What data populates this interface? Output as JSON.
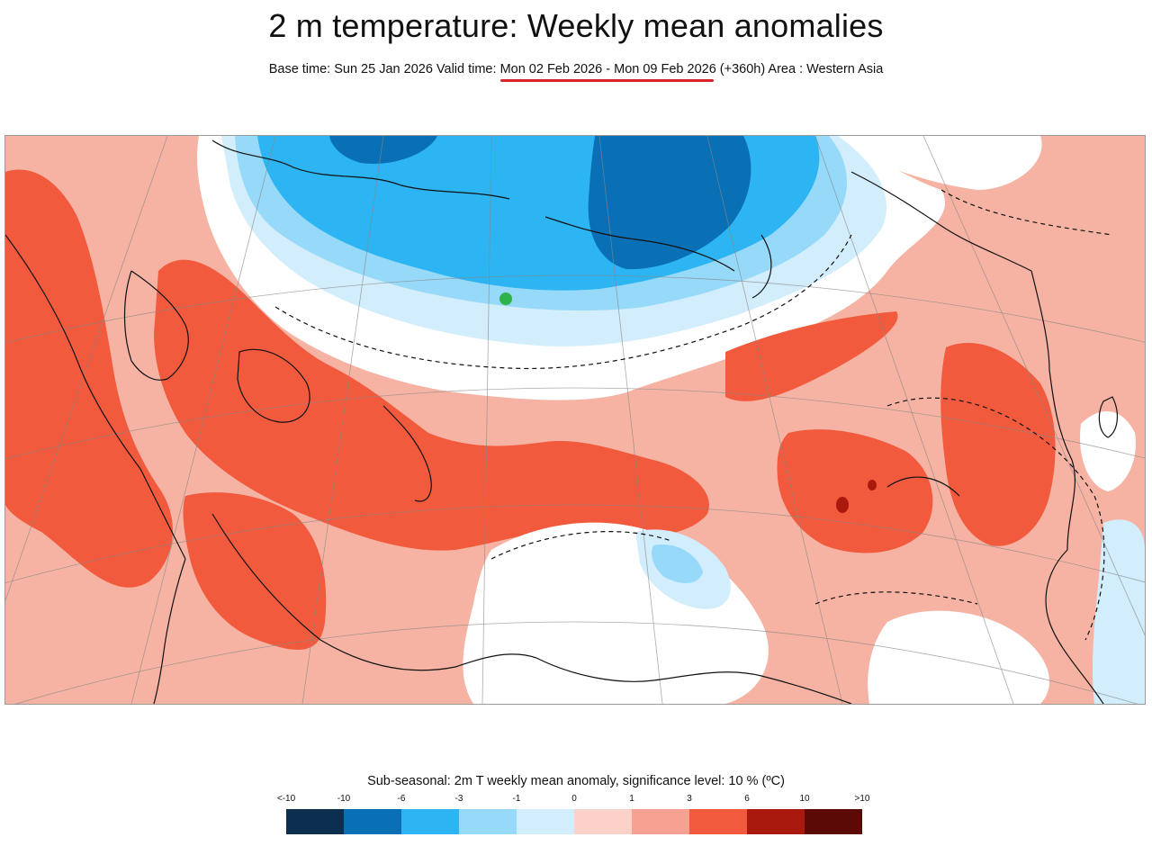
{
  "title": "2 m temperature: Weekly mean anomalies",
  "subtitle": {
    "base": "Base time: Sun 25 Jan 2026 Valid time: ",
    "valid_range": "Mon 02 Feb 2026 - Mon 09 Feb 2026",
    "rest": " (+360h) Area : Western Asia"
  },
  "legend": {
    "title": "Sub-seasonal: 2m T weekly mean anomaly, significance level: 10 % (ºC)",
    "ticks": [
      "<-10",
      "-10",
      "-6",
      "-3",
      "-1",
      "0",
      "1",
      "3",
      "6",
      "10",
      ">10"
    ],
    "colors": [
      "#0c2f4f",
      "#0a70b5",
      "#2db4f2",
      "#97d9f8",
      "#d2edfb",
      "#fbd1ca",
      "#f6a191",
      "#f25a3d",
      "#aa190d",
      "#5c0a05"
    ]
  },
  "map": {
    "area": "Western Asia",
    "colors": {
      "base_warm": "#f6b3a3",
      "strong_warm": "#f25a3d",
      "very_warm": "#aa190d",
      "neutral": "#ffffff",
      "slight_cool": "#d2edfb",
      "cool": "#97d9f8",
      "cold": "#2db4f2",
      "very_cold": "#0a70b5",
      "marker": "#2eb34a"
    }
  }
}
